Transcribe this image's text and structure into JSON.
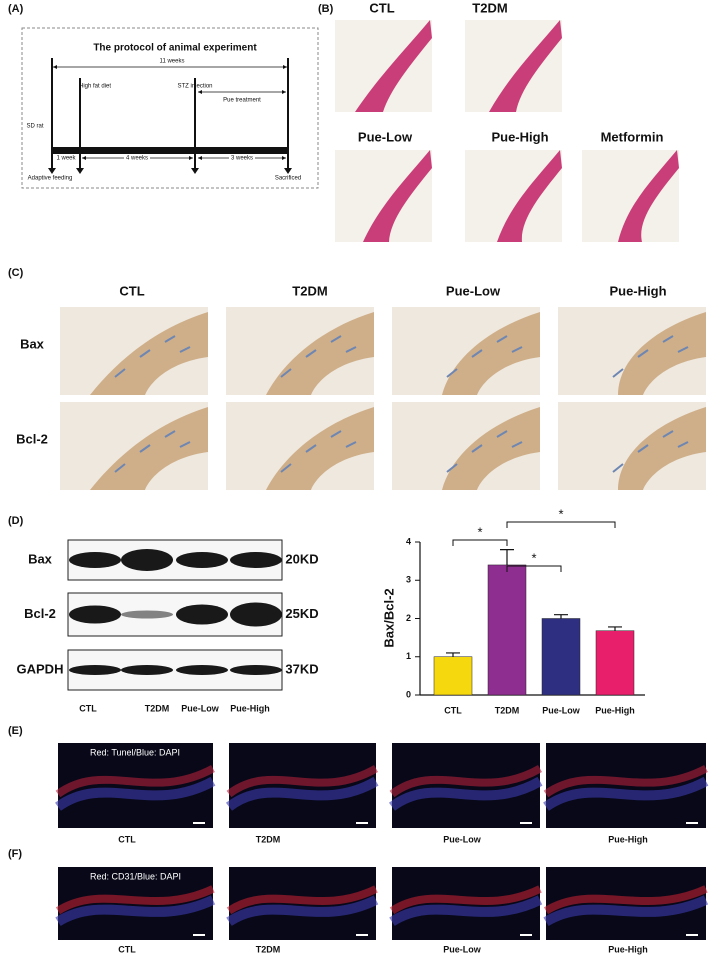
{
  "figure": {
    "A": {
      "label": "(A)",
      "title": "The protocol of animal experiment",
      "total": "11 weeks",
      "start": "SD rat",
      "hfd": "High fat diet",
      "stz": "STZ injection",
      "treatment": "Pue treatment",
      "phases": [
        "1 week",
        "4 weeks",
        "3 weeks"
      ],
      "adaptive": "Adaptive feeding",
      "end": "Sacrificed"
    },
    "B": {
      "label": "(B)",
      "groups": [
        "CTL",
        "T2DM",
        "Pue-Low",
        "Pue-High",
        "Metformin"
      ]
    },
    "C": {
      "label": "(C)",
      "groups": [
        "CTL",
        "T2DM",
        "Pue-Low",
        "Pue-High"
      ],
      "rows": [
        "Bax",
        "Bcl-2"
      ]
    },
    "D": {
      "label": "(D)",
      "blots": [
        {
          "protein": "Bax",
          "size": "20KD"
        },
        {
          "protein": "Bcl-2",
          "size": "25KD"
        },
        {
          "protein": "GAPDH",
          "size": "37KD"
        }
      ],
      "lanes": [
        "CTL",
        "T2DM",
        "Pue-Low",
        "Pue-High"
      ]
    },
    "E": {
      "label": "(E)",
      "stain": "Red: Tunel/Blue: DAPI",
      "groups": [
        "CTL",
        "T2DM",
        "Pue-Low",
        "Pue-High"
      ]
    },
    "F": {
      "label": "(F)",
      "stain": "Red: CD31/Blue: DAPI",
      "groups": [
        "CTL",
        "T2DM",
        "Pue-Low",
        "Pue-High"
      ]
    }
  },
  "chart_data": {
    "type": "bar",
    "ylabel": "Bax/Bcl-2",
    "categories": [
      "CTL",
      "T2DM",
      "Pue-Low",
      "Pue-High"
    ],
    "values": [
      1.0,
      3.4,
      2.0,
      1.68
    ],
    "errors": [
      0.1,
      0.4,
      0.1,
      0.1
    ],
    "colors": [
      "#f6d80f",
      "#8e2e90",
      "#2e2f80",
      "#e8206c"
    ],
    "ylim": [
      0,
      4
    ],
    "yticks": [
      0,
      1,
      2,
      3,
      4
    ],
    "annotations": [
      "*",
      "*",
      "*"
    ]
  }
}
